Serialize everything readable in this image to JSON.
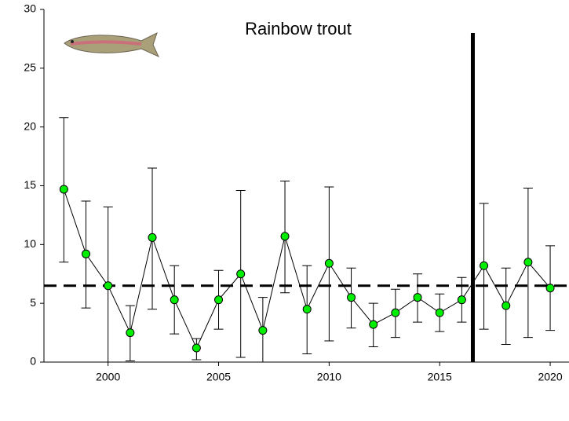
{
  "chart_data": {
    "type": "line",
    "title": "Rainbow trout",
    "x": [
      1998,
      1999,
      2000,
      2001,
      2002,
      2003,
      2004,
      2005,
      2006,
      2007,
      2008,
      2009,
      2010,
      2011,
      2012,
      2013,
      2014,
      2015,
      2016,
      2017,
      2018,
      2019,
      2020
    ],
    "series": [
      {
        "color": "#00ee00",
        "values": [
          14.7,
          9.2,
          6.5,
          2.5,
          10.6,
          5.3,
          1.2,
          5.3,
          7.5,
          2.7,
          10.7,
          4.5,
          8.4,
          5.5,
          3.2,
          4.2,
          5.5,
          4.2,
          5.3,
          8.2,
          4.8,
          8.5,
          6.3
        ],
        "lower": [
          8.5,
          4.6,
          0,
          0.1,
          4.5,
          2.4,
          0.2,
          2.8,
          0.4,
          0,
          5.9,
          0.7,
          1.8,
          2.9,
          1.3,
          2.1,
          3.4,
          2.6,
          3.4,
          2.8,
          1.5,
          2.1,
          2.7
        ],
        "upper": [
          20.8,
          13.7,
          13.2,
          4.8,
          16.5,
          8.2,
          2.0,
          7.8,
          14.6,
          5.5,
          15.4,
          8.2,
          14.9,
          8.0,
          5.0,
          6.2,
          7.5,
          5.8,
          7.2,
          13.5,
          8.0,
          14.8,
          9.9
        ]
      }
    ],
    "mean_line": 6.5,
    "vline": 2016.5,
    "xlim": [
      1997.1,
      2020.85
    ],
    "ylim": [
      0,
      30
    ],
    "xticks": [
      2000,
      2005,
      2010,
      2015,
      2020
    ],
    "yticks": [
      0,
      5,
      10,
      15,
      20,
      25,
      30
    ]
  }
}
